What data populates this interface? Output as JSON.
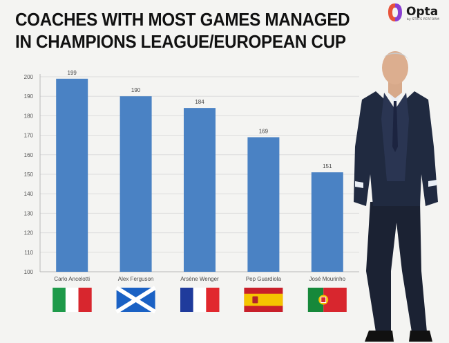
{
  "header": {
    "title_line1": "COACHES WITH MOST GAMES MANAGED",
    "title_line2": "IN CHAMPIONS LEAGUE/EUROPEAN CUP",
    "brand": "Opta",
    "brand_sub": "by STATS PERFORM"
  },
  "colors": {
    "bar": "#4a82c4",
    "grid": "#dcdcdc",
    "axis": "#b8b8b8",
    "background": "#f4f4f2"
  },
  "chart_data": {
    "type": "bar",
    "title": "COACHES WITH MOST GAMES MANAGED IN CHAMPIONS LEAGUE/EUROPEAN CUP",
    "categories": [
      "Carlo Ancelotti",
      "Alex Ferguson",
      "Arsène Wenger",
      "Pep Guardiola",
      "José Mourinho"
    ],
    "values": [
      199,
      190,
      184,
      169,
      151
    ],
    "ylim": [
      100,
      200
    ],
    "yticks": [
      100,
      110,
      120,
      130,
      140,
      150,
      160,
      170,
      180,
      190,
      200
    ],
    "grid": true,
    "data_labels": true,
    "flags": [
      "italy-flag-icon",
      "scotland-flag-icon",
      "france-flag-icon",
      "spain-flag-icon",
      "portugal-flag-icon"
    ]
  }
}
